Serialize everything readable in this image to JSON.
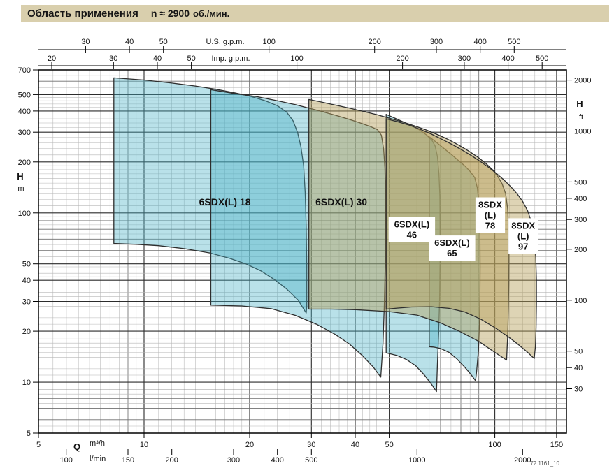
{
  "title_bar": {
    "title": "Область применения",
    "speed": "n ≈ 2900",
    "unit": "об./мин."
  },
  "footnote": "72.1161_10",
  "chart_data": {
    "type": "area",
    "title": "Область применения n ≈ 2900 об./мин.",
    "grid": "log-log dense",
    "x_axes": {
      "m3h": {
        "label": "Q",
        "unit": "m³/h",
        "range": [
          5,
          160
        ],
        "factor_to_m3h": 1,
        "ticks": [
          5,
          10,
          20,
          30,
          40,
          50,
          100,
          150
        ],
        "emphasized": [
          10,
          20,
          30,
          40,
          50,
          100,
          150
        ]
      },
      "lmin": {
        "unit": "l/min",
        "factor_to_m3h": 0.06,
        "ticks": [
          100,
          150,
          200,
          300,
          400,
          500,
          1000,
          2000
        ]
      },
      "us_gpm": {
        "unit": "U.S. g.p.m.",
        "factor_to_m3h": 0.22712,
        "ticks": [
          30,
          40,
          50,
          100,
          200,
          300,
          400,
          500
        ]
      },
      "imp_gpm": {
        "unit": "Imp. g.p.m.",
        "factor_to_m3h": 0.27276,
        "ticks": [
          20,
          30,
          40,
          50,
          100,
          200,
          300,
          400,
          500
        ]
      }
    },
    "y_axes": {
      "m": {
        "label": "H",
        "unit": "m",
        "range": [
          5,
          700
        ],
        "factor_to_m": 1,
        "ticks": [
          700,
          500,
          400,
          300,
          200,
          100,
          50,
          40,
          30,
          20,
          10,
          5
        ],
        "emphasized": [
          700,
          500,
          400,
          300,
          200,
          100,
          50,
          40,
          30,
          20,
          10
        ]
      },
      "ft": {
        "label": "H",
        "unit": "ft",
        "factor_to_m": 0.3048,
        "ticks": [
          2000,
          1000,
          500,
          400,
          300,
          200,
          100,
          50,
          40,
          30
        ]
      }
    },
    "colors": {
      "cyan_fill": "rgba(70,176,198,0.38)",
      "beige_fill": "rgba(182,160,92,0.45)",
      "region_stroke": "#2e2e2e",
      "title_bar_bg": "#d9cfad"
    },
    "regions": [
      {
        "id": "6sdxl-18",
        "label_lines": [
          "6SDX(L) 18"
        ],
        "label_q": 17,
        "label_h": 116,
        "boxed": false,
        "family": "cyan",
        "points": [
          [
            8.2,
            66
          ],
          [
            8.2,
            628
          ],
          [
            10,
            610
          ],
          [
            12,
            585
          ],
          [
            14,
            562
          ],
          [
            16,
            538
          ],
          [
            18,
            514
          ],
          [
            20,
            490
          ],
          [
            22,
            462
          ],
          [
            24,
            430
          ],
          [
            25.5,
            394
          ],
          [
            26.6,
            350
          ],
          [
            27.4,
            298
          ],
          [
            28,
            246
          ],
          [
            28.5,
            190
          ],
          [
            28.8,
            132
          ],
          [
            29,
            82
          ],
          [
            29.1,
            48
          ],
          [
            29.1,
            28
          ],
          [
            29,
            25.6
          ],
          [
            27.5,
            30.5
          ],
          [
            25.5,
            35.5
          ],
          [
            23.5,
            40.5
          ],
          [
            21.5,
            45.5
          ],
          [
            19.5,
            50
          ],
          [
            17.5,
            54
          ],
          [
            15.4,
            58
          ],
          [
            13,
            61.5
          ],
          [
            11,
            64
          ],
          [
            9.5,
            65.2
          ]
        ]
      },
      {
        "id": "6sdxl-30",
        "label_lines": [
          "6SDX(L) 30"
        ],
        "label_q": 36.5,
        "label_h": 116,
        "boxed": false,
        "family": "cyan",
        "points": [
          [
            15.5,
            28.5
          ],
          [
            15.5,
            535
          ],
          [
            18,
            508
          ],
          [
            21,
            486
          ],
          [
            24,
            460
          ],
          [
            27,
            436
          ],
          [
            29.5,
            416
          ],
          [
            32,
            398
          ],
          [
            35,
            378
          ],
          [
            38,
            360
          ],
          [
            41,
            342
          ],
          [
            44,
            325
          ],
          [
            46.3,
            310
          ],
          [
            47.5,
            288
          ],
          [
            48.2,
            238
          ],
          [
            48.6,
            184
          ],
          [
            48.8,
            128
          ],
          [
            48.8,
            84
          ],
          [
            48.7,
            50
          ],
          [
            48.4,
            28
          ],
          [
            48,
            17
          ],
          [
            47.3,
            10.7
          ],
          [
            45,
            12.3
          ],
          [
            42,
            14.3
          ],
          [
            38.5,
            16.8
          ],
          [
            35,
            19.2
          ],
          [
            31,
            22
          ],
          [
            27,
            24.8
          ],
          [
            23,
            27.2
          ],
          [
            19,
            28.2
          ]
        ]
      },
      {
        "id": "6sdxl-46",
        "label_lines": [
          "6SDX(L)",
          "46"
        ],
        "label_q": 58,
        "label_h": 80,
        "boxed": true,
        "family": "cyan",
        "points": [
          [
            49,
            14.9
          ],
          [
            49,
            382
          ],
          [
            52,
            362
          ],
          [
            55,
            344
          ],
          [
            58,
            327
          ],
          [
            61,
            309
          ],
          [
            64,
            288
          ],
          [
            66.2,
            268
          ],
          [
            67.6,
            248
          ],
          [
            68.6,
            215
          ],
          [
            69.3,
            170
          ],
          [
            69.7,
            125
          ],
          [
            69.8,
            85
          ],
          [
            69.8,
            52
          ],
          [
            69.6,
            32
          ],
          [
            69.2,
            20
          ],
          [
            68.6,
            12.8
          ],
          [
            68.2,
            8.8
          ],
          [
            66,
            9.7
          ],
          [
            63,
            11
          ],
          [
            59.5,
            12.5
          ],
          [
            56,
            13.6
          ],
          [
            52.5,
            14.4
          ]
        ]
      },
      {
        "id": "6sdxl-65",
        "label_lines": [
          "6SDX(L)",
          "65"
        ],
        "label_q": 75.5,
        "label_h": 62,
        "boxed": true,
        "family": "cyan",
        "points": [
          [
            65,
            16.2
          ],
          [
            65,
            282
          ],
          [
            68,
            262
          ],
          [
            71.5,
            241
          ],
          [
            75,
            222
          ],
          [
            78.5,
            205
          ],
          [
            82,
            190
          ],
          [
            85,
            176
          ],
          [
            87.6,
            162
          ],
          [
            89.2,
            140
          ],
          [
            90.2,
            108
          ],
          [
            90.7,
            75
          ],
          [
            90.8,
            48
          ],
          [
            90.7,
            32
          ],
          [
            90.4,
            22
          ],
          [
            89.8,
            15.5
          ],
          [
            88.7,
            11.5
          ],
          [
            88.1,
            10.2
          ],
          [
            85.5,
            11.1
          ],
          [
            82,
            12.3
          ],
          [
            78,
            13.7
          ],
          [
            74,
            15
          ],
          [
            70,
            15.8
          ],
          [
            67,
            16.1
          ]
        ]
      },
      {
        "id": "8sdx-78",
        "label_lines": [
          "8SDX",
          "(L)",
          "78"
        ],
        "label_q": 97,
        "label_h": 97,
        "boxed": true,
        "family": "beige",
        "points": [
          [
            29.5,
            27
          ],
          [
            29.5,
            468
          ],
          [
            32,
            452
          ],
          [
            35,
            434
          ],
          [
            38.5,
            416
          ],
          [
            42,
            399
          ],
          [
            46,
            381
          ],
          [
            50,
            363
          ],
          [
            54.5,
            345
          ],
          [
            59,
            327
          ],
          [
            64,
            308
          ],
          [
            69,
            289
          ],
          [
            74,
            270
          ],
          [
            79,
            251
          ],
          [
            84,
            233
          ],
          [
            89,
            215
          ],
          [
            94,
            197
          ],
          [
            98.5,
            180
          ],
          [
            102,
            164
          ],
          [
            105,
            148
          ],
          [
            107.3,
            130
          ],
          [
            108.8,
            105
          ],
          [
            109.5,
            78
          ],
          [
            109.7,
            55
          ],
          [
            109.6,
            38
          ],
          [
            109.3,
            27
          ],
          [
            108.8,
            19
          ],
          [
            108,
            13.5
          ],
          [
            100,
            15
          ],
          [
            90,
            17.4
          ],
          [
            80,
            19.8
          ],
          [
            70,
            22.4
          ],
          [
            60,
            24.9
          ],
          [
            50,
            26.1
          ],
          [
            40,
            26.8
          ],
          [
            34,
            27
          ]
        ]
      },
      {
        "id": "8sdx-97",
        "label_lines": [
          "8SDX",
          "(L)",
          "97"
        ],
        "label_q": 120.5,
        "label_h": 73,
        "boxed": true,
        "family": "beige",
        "points": [
          [
            49,
            27
          ],
          [
            49,
            360
          ],
          [
            53,
            345
          ],
          [
            57,
            330
          ],
          [
            61,
            313
          ],
          [
            66,
            292
          ],
          [
            71,
            271
          ],
          [
            76,
            252
          ],
          [
            81,
            234
          ],
          [
            86,
            217
          ],
          [
            91,
            201
          ],
          [
            96,
            186
          ],
          [
            101,
            171
          ],
          [
            106,
            157
          ],
          [
            111,
            143
          ],
          [
            116,
            129
          ],
          [
            120,
            117
          ],
          [
            124,
            103
          ],
          [
            127,
            89
          ],
          [
            129.3,
            73
          ],
          [
            130.8,
            55
          ],
          [
            131.4,
            40
          ],
          [
            131.4,
            29
          ],
          [
            131.1,
            21
          ],
          [
            130.5,
            16.2
          ],
          [
            129.5,
            13.8
          ],
          [
            124,
            15
          ],
          [
            117,
            16.6
          ],
          [
            109,
            18.6
          ],
          [
            100,
            21
          ],
          [
            91,
            23.6
          ],
          [
            82,
            26
          ],
          [
            74,
            27.3
          ],
          [
            66,
            27.9
          ],
          [
            58,
            27.8
          ],
          [
            53,
            27.4
          ]
        ]
      }
    ]
  }
}
